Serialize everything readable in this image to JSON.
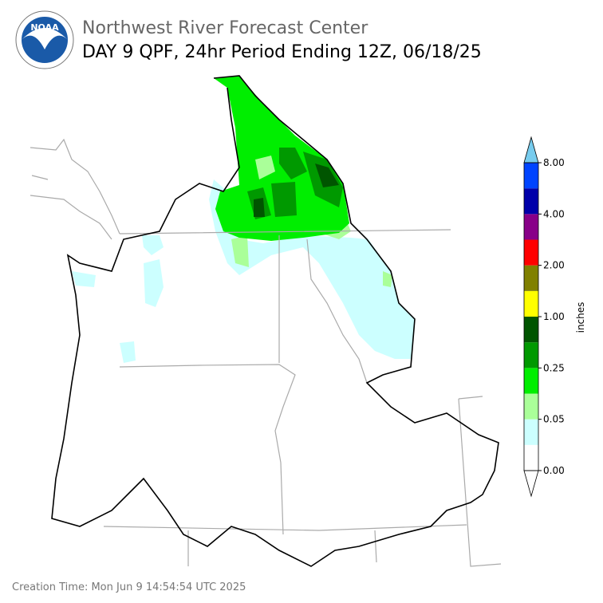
{
  "header": {
    "logo": "NOAA",
    "agency": "Northwest River Forecast Center",
    "title": "DAY 9 QPF, 24hr Period Ending 12Z, 06/18/25"
  },
  "colorbar": {
    "label": "inches",
    "ticks": [
      "0.00",
      "0.05",
      "0.25",
      "1.00",
      "2.00",
      "4.00",
      "8.00"
    ],
    "colors": [
      "#ffffff",
      "#ccffff",
      "#aaff99",
      "#00ee00",
      "#009900",
      "#005500",
      "#ffff00",
      "#808000",
      "#ff0000",
      "#880088",
      "#0000aa",
      "#0044ff"
    ],
    "over_color": "#77ccee",
    "under_color": "#ffffff"
  },
  "footer": {
    "creation_time": "Creation Time: Mon Jun 9 14:54:54 UTC 2025"
  }
}
